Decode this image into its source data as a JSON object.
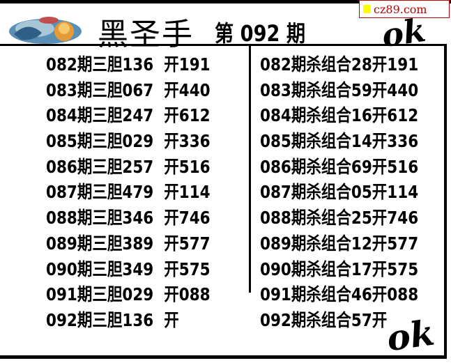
{
  "header": {
    "title": "黑圣手",
    "issue": "第 092 期",
    "watermark": "cz89.com",
    "colors": {
      "watermark": "#bb0000",
      "watermark_square": "#ffff00"
    }
  },
  "left_column": [
    "082期三胆136  开191",
    "083期三胆067  开440",
    "084期三胆247  开612",
    "085期三胆029  开336",
    "086期三胆257  开516",
    "087期三胆479  开114",
    "088期三胆346  开746",
    "089期三胆389  开577",
    "090期三胆349  开575",
    "091期三胆029  开088",
    "092期三胆136  开"
  ],
  "right_column": [
    "082期杀组合28开191",
    "083期杀组合59开440",
    "084期杀组合16开612",
    "085期杀组合14开336",
    "086期杀组合69开516",
    "087期杀组合05开114",
    "088期杀组合25开746",
    "089期杀组合12开577",
    "090期杀组合17开575",
    "091期杀组合46开088",
    "092期杀组合57开"
  ],
  "stamps": [
    "ok",
    "ok"
  ]
}
